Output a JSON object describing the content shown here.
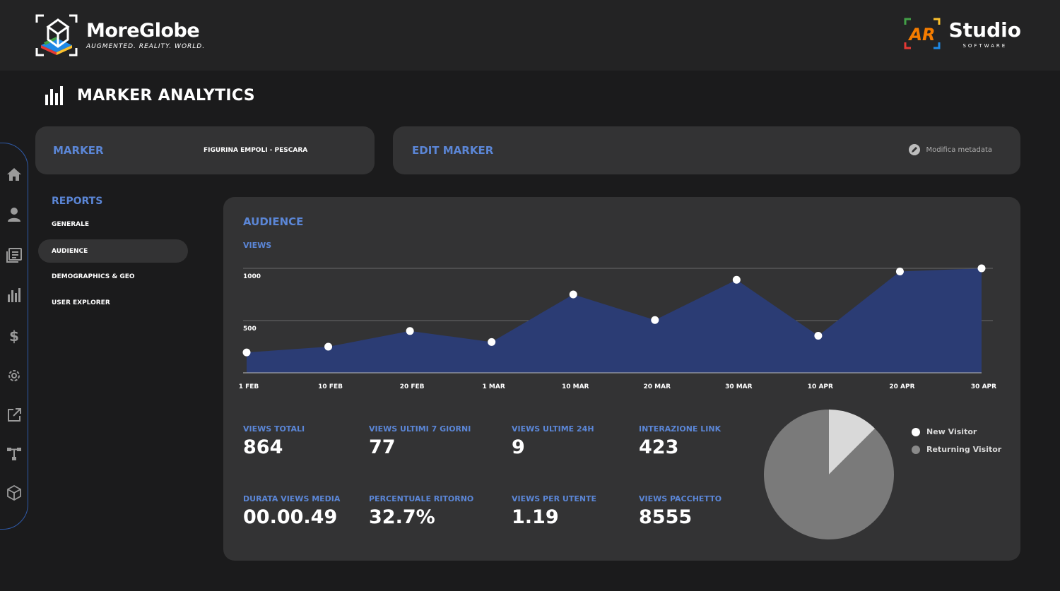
{
  "header": {
    "brand_name": "MoreGlobe",
    "brand_tagline": "AUGMENTED. REALITY. WORLD.",
    "partner_name": "Studio",
    "partner_sub": "SOFTWARE",
    "partner_logo_mark": "AR"
  },
  "page": {
    "title": "MARKER ANALYTICS"
  },
  "marker": {
    "label": "MARKER",
    "value": "FIGURINA EMPOLI - PESCARA"
  },
  "edit": {
    "label": "EDIT MARKER",
    "action": "Modifica metadata"
  },
  "sidebar": {
    "icons": [
      "home-icon",
      "user-icon",
      "news-icon",
      "bar-chart-icon",
      "dollar-icon",
      "gear-icon",
      "external-link-icon",
      "hierarchy-icon",
      "box-icon"
    ]
  },
  "reports": {
    "title": "REPORTS",
    "items": [
      {
        "label": "GENERALE",
        "active": false
      },
      {
        "label": "AUDIENCE",
        "active": true
      },
      {
        "label": "DEMOGRAPHICS & GEO",
        "active": false
      },
      {
        "label": "USER EXPLORER",
        "active": false
      }
    ]
  },
  "audience": {
    "title": "AUDIENCE",
    "views_label": "VIEWS",
    "kpis": [
      {
        "label": "VIEWS TOTALI",
        "value": "864"
      },
      {
        "label": "VIEWS ULTIMI 7 GIORNI",
        "value": "77"
      },
      {
        "label": "VIEWS ULTIME 24H",
        "value": "9"
      },
      {
        "label": "INTERAZIONE LINK",
        "value": "423"
      },
      {
        "label": "DURATA VIEWS MEDIA",
        "value": "00.00.49"
      },
      {
        "label": "PERCENTUALE RITORNO",
        "value": "32.7%"
      },
      {
        "label": "VIEWS PER UTENTE",
        "value": "1.19"
      },
      {
        "label": "VIEWS PACCHETTO",
        "value": "8555"
      }
    ]
  },
  "colors": {
    "accent": "#5b86d6",
    "area": "#2b3c74",
    "card": "#333334",
    "background": "#1b1b1c"
  },
  "chart_data": [
    {
      "type": "area",
      "x": [
        "1 FEB",
        "10 FEB",
        "20 FEB",
        "1 MAR",
        "10 MAR",
        "20 MAR",
        "30 MAR",
        "10 APR",
        "20 APR",
        "30 APR"
      ],
      "series": [
        {
          "values": [
            195,
            250,
            400,
            295,
            750,
            505,
            890,
            355,
            970,
            1000
          ]
        }
      ],
      "yticks": [
        500,
        1000
      ],
      "ylim": [
        0,
        1000
      ],
      "grid": true
    },
    {
      "type": "pie",
      "series": [
        {
          "name": "New Visitor",
          "values": [
            12.5
          ]
        },
        {
          "name": "Returning Visitor",
          "values": [
            87.5
          ]
        }
      ],
      "legend": "right"
    }
  ]
}
